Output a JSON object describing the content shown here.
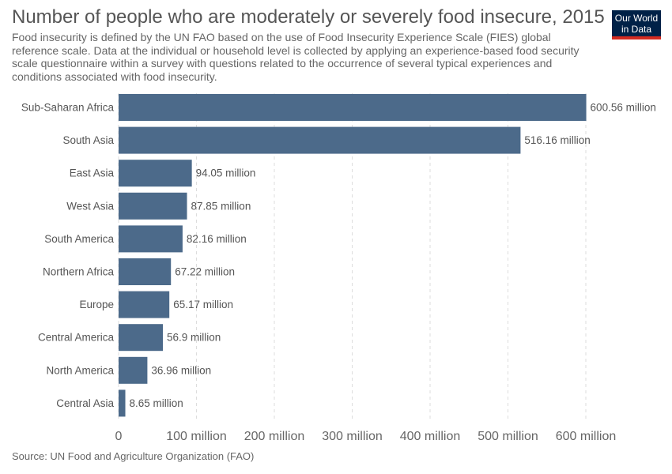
{
  "header": {
    "title": "Number of people who are moderately or severely food insecure, 2015",
    "subtitle": "Food insecurity is defined by the UN FAO based on the use of Food Insecurity Experience Scale (FIES) global reference scale. Data at the individual or household level is collected by applying an experience-based food security scale questionnaire within a survey with questions related to the occurrence of several typical experiences and conditions associated with food insecurity.",
    "logo_line1": "Our World",
    "logo_line2": "in Data"
  },
  "footer": {
    "source": "Source: UN Food and Agriculture Organization (FAO)"
  },
  "colors": {
    "bar": "#4c6a8a",
    "logo_bg": "#002147",
    "logo_accent": "#d42b21"
  },
  "chart_data": {
    "type": "bar",
    "orientation": "horizontal",
    "title": "Number of people who are moderately or severely food insecure, 2015",
    "xlabel": "",
    "ylabel": "",
    "categories": [
      "Sub-Saharan Africa",
      "South Asia",
      "East Asia",
      "West Asia",
      "South America",
      "Northern Africa",
      "Europe",
      "Central America",
      "North America",
      "Central Asia"
    ],
    "values": [
      600.56,
      516.16,
      94.05,
      87.85,
      82.16,
      67.22,
      65.17,
      56.9,
      36.96,
      8.65
    ],
    "value_labels": [
      "600.56 million",
      "516.16 million",
      "94.05 million",
      "87.85 million",
      "82.16 million",
      "67.22 million",
      "65.17 million",
      "56.9 million",
      "36.96 million",
      "8.65 million"
    ],
    "unit": "million",
    "xlim": [
      0,
      600
    ],
    "x_ticks": [
      0,
      100,
      200,
      300,
      400,
      500,
      600
    ],
    "x_tick_labels": [
      "0",
      "100 million",
      "200 million",
      "300 million",
      "400 million",
      "500 million",
      "600 million"
    ],
    "grid": true
  }
}
